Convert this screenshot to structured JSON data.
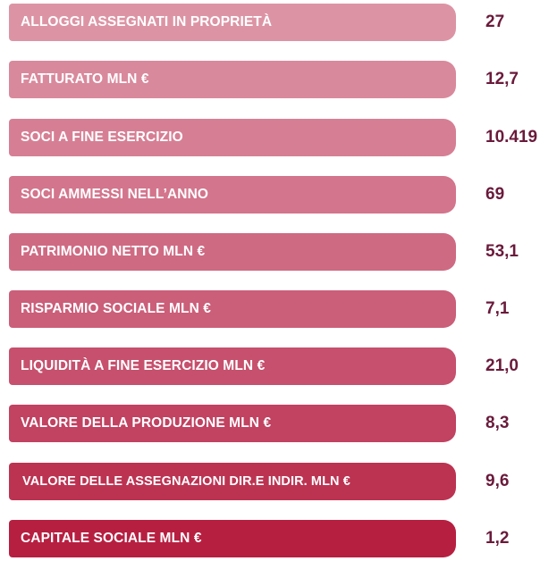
{
  "stats": [
    {
      "label": "ALLOGGI ASSEGNATI IN PROPRIETÀ",
      "value": "27",
      "color": "#dc94a4"
    },
    {
      "label": "FATTURATO MLN €",
      "value": "12,7",
      "color": "#d9899c"
    },
    {
      "label": "SOCI A FINE ESERCIZIO",
      "value": "10.419",
      "color": "#d67f94"
    },
    {
      "label": "SOCI AMMESSI NELL’ANNO",
      "value": "69",
      "color": "#d3758c"
    },
    {
      "label": "PATRIMONIO NETTO MLN €",
      "value": "53,1",
      "color": "#cf6a83"
    },
    {
      "label": "RISPARMIO SOCIALE MLN €",
      "value": "7,1",
      "color": "#cb5e79"
    },
    {
      "label": "LIQUIDITÀ A FINE ESERCIZIO MLN €",
      "value": "21,0",
      "color": "#c6506d"
    },
    {
      "label": "VALORE DELLA PRODUZIONE MLN €",
      "value": "8,3",
      "color": "#c14261"
    },
    {
      "label": "VALORE DELLE ASSEGNAZIONI DIR.E INDIR. MLN €",
      "value": "9,6",
      "color": "#bc3352"
    },
    {
      "label": "CAPITALE SOCIALE MLN €",
      "value": "1,2",
      "color": "#b71f41"
    }
  ]
}
